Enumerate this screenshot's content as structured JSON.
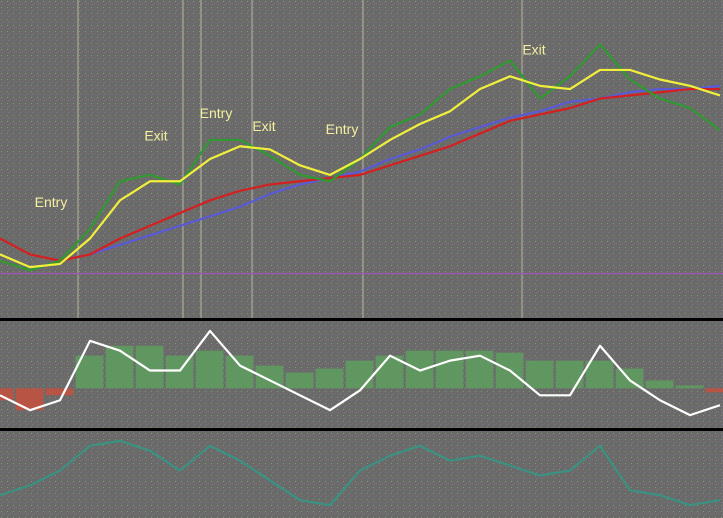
{
  "chart_data": [
    {
      "type": "line",
      "x": [
        0,
        1,
        2,
        3,
        4,
        5,
        6,
        7,
        8,
        9,
        10,
        11,
        12,
        13,
        14,
        15,
        16,
        17,
        18,
        19,
        20,
        21,
        22,
        23,
        24
      ],
      "xlim": [
        0,
        24
      ],
      "ylim": [
        0,
        100
      ],
      "series": [
        {
          "color": "#5a5ad8",
          "values": [
            null,
            null,
            18,
            20,
            23,
            26,
            29,
            32,
            35,
            39,
            42,
            44,
            46,
            50,
            53,
            57,
            60,
            63,
            65,
            68,
            69,
            71,
            72,
            72,
            73
          ]
        },
        {
          "color": "#d42020",
          "values": [
            25,
            20,
            18,
            20,
            25,
            29,
            33,
            37,
            40,
            42,
            43,
            44,
            45,
            48,
            51,
            54,
            58,
            62,
            64,
            66,
            69,
            70,
            71,
            72,
            72
          ]
        },
        {
          "color": "#2f9a2f",
          "values": [
            18,
            15,
            18,
            28,
            43,
            45,
            42,
            56,
            56,
            51,
            45,
            43,
            50,
            60,
            64,
            72,
            76,
            81,
            69,
            76,
            86,
            75,
            69,
            66,
            59
          ]
        },
        {
          "color": "#f0f03c",
          "values": [
            20,
            16,
            17,
            25,
            37,
            43,
            43,
            50,
            54,
            53,
            48,
            45,
            50,
            56,
            61,
            65,
            72,
            76,
            73,
            72,
            78,
            78,
            75,
            73,
            70
          ]
        }
      ],
      "hline": {
        "value": 14,
        "color": "#9a5aa8"
      },
      "vlines": [
        2.6,
        6.1,
        6.7,
        8.4,
        12.1,
        17.4
      ],
      "annotations": [
        {
          "text": "Entry",
          "x": 1.7,
          "y": 36
        },
        {
          "text": "Exit",
          "x": 5.2,
          "y": 57
        },
        {
          "text": "Entry",
          "x": 7.2,
          "y": 64
        },
        {
          "text": "Exit",
          "x": 8.8,
          "y": 60
        },
        {
          "text": "Entry",
          "x": 11.4,
          "y": 59
        },
        {
          "text": "Exit",
          "x": 17.8,
          "y": 84
        }
      ]
    },
    {
      "type": "combo",
      "x": [
        0,
        1,
        2,
        3,
        4,
        5,
        6,
        7,
        8,
        9,
        10,
        11,
        12,
        13,
        14,
        15,
        16,
        17,
        18,
        19,
        20,
        21,
        22,
        23,
        24
      ],
      "xlim": [
        0,
        24
      ],
      "ylim": [
        -40,
        68
      ],
      "series": [
        {
          "type": "bar",
          "color": "#5e9e5e",
          "negative_color": "#c4503c",
          "values": [
            -12,
            -22,
            -7,
            33,
            43,
            43,
            33,
            38,
            33,
            23,
            16,
            20,
            28,
            33,
            38,
            38,
            38,
            36,
            28,
            28,
            28,
            20,
            8,
            3,
            -4
          ]
        },
        {
          "type": "line",
          "color": "#ffffff",
          "values": [
            -7,
            -22,
            -12,
            48,
            38,
            18,
            18,
            58,
            23,
            8,
            -7,
            -22,
            -2,
            33,
            18,
            28,
            33,
            18,
            -7,
            -7,
            43,
            8,
            -12,
            -27,
            -17
          ]
        }
      ]
    },
    {
      "type": "line",
      "x": [
        0,
        1,
        2,
        3,
        4,
        5,
        6,
        7,
        8,
        9,
        10,
        11,
        12,
        13,
        14,
        15,
        16,
        17,
        18,
        19,
        20,
        21,
        22,
        23,
        24
      ],
      "xlim": [
        0,
        24
      ],
      "ylim": [
        0,
        88
      ],
      "series": [
        {
          "color": "#3a9282",
          "values": [
            23,
            33,
            48,
            73,
            78,
            68,
            48,
            73,
            58,
            38,
            18,
            13,
            48,
            63,
            73,
            58,
            63,
            53,
            43,
            48,
            73,
            28,
            23,
            13,
            18
          ]
        }
      ]
    }
  ]
}
